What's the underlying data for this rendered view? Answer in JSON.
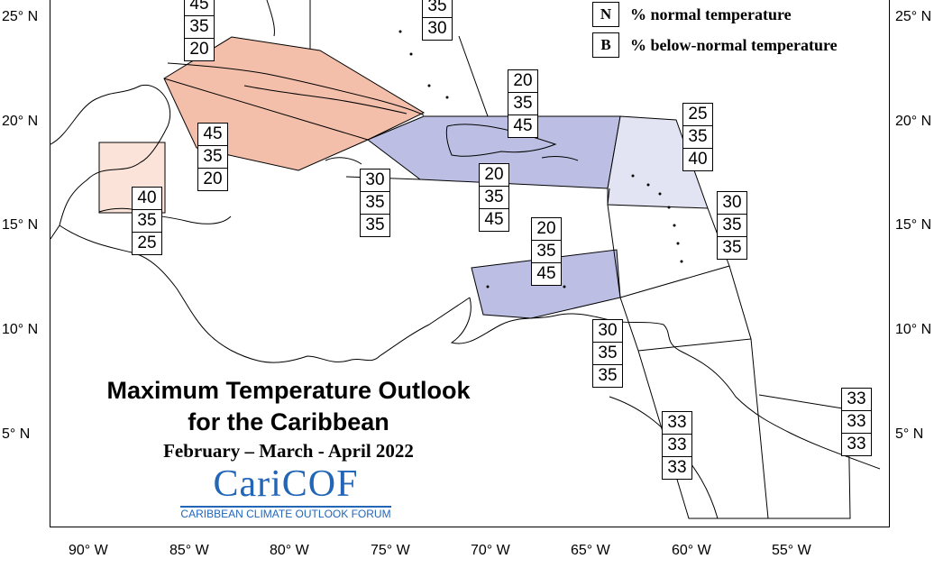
{
  "legend": [
    {
      "key": "N",
      "text": "% normal temperature"
    },
    {
      "key": "B",
      "text": "% below-normal temperature"
    }
  ],
  "title": {
    "line1": "Maximum Temperature Outlook",
    "line2": "for the Caribbean",
    "period": "February – March - April 2022"
  },
  "logo": {
    "wordmark": "CariCOF",
    "subtitle": "CARIBBEAN CLIMATE OUTLOOK FORUM"
  },
  "axes": {
    "lat_labels": [
      "25° N",
      "20° N",
      "15° N",
      "10° N",
      "5° N"
    ],
    "lon_labels": [
      "90° W",
      "85° W",
      "80° W",
      "75° W",
      "70° W",
      "65° W",
      "60° W",
      "55° W"
    ]
  },
  "colors": {
    "above_tint": "#f2b8a2",
    "above_light": "#fbe3d9",
    "below_tint": "#b5b8e0",
    "below_light": "#e2e4f3"
  },
  "forecast_boxes": [
    {
      "id": "bahamas-north",
      "values": [
        "45",
        "35",
        "20"
      ]
    },
    {
      "id": "turks-caicos",
      "values": [
        "35",
        "30"
      ]
    },
    {
      "id": "hispaniola-north",
      "values": [
        "20",
        "35",
        "45"
      ]
    },
    {
      "id": "cuba",
      "values": [
        "45",
        "35",
        "20"
      ]
    },
    {
      "id": "leewards",
      "values": [
        "25",
        "35",
        "40"
      ]
    },
    {
      "id": "belize",
      "values": [
        "40",
        "35",
        "25"
      ]
    },
    {
      "id": "jamaica",
      "values": [
        "30",
        "35",
        "35"
      ]
    },
    {
      "id": "hispaniola-south",
      "values": [
        "20",
        "35",
        "45"
      ]
    },
    {
      "id": "windwards",
      "values": [
        "30",
        "35",
        "35"
      ]
    },
    {
      "id": "abc-islands",
      "values": [
        "20",
        "35",
        "45"
      ]
    },
    {
      "id": "trinidad",
      "values": [
        "30",
        "35",
        "35"
      ]
    },
    {
      "id": "suriname",
      "values": [
        "33",
        "33",
        "33"
      ]
    },
    {
      "id": "guyana",
      "values": [
        "33",
        "33",
        "33"
      ]
    }
  ]
}
